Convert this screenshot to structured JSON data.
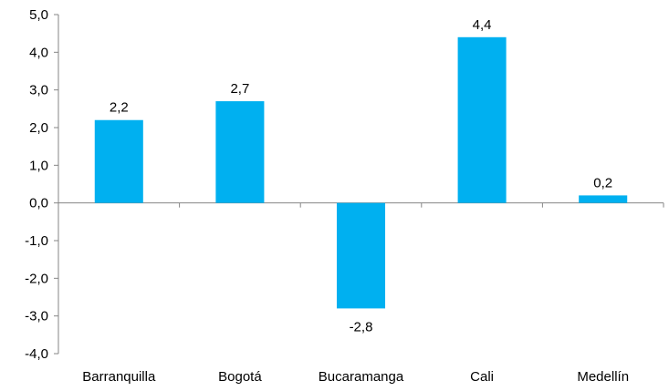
{
  "chart_data": {
    "type": "bar",
    "categories": [
      "Barranquilla",
      "Bogotá",
      "Bucaramanga",
      "Cali",
      "Medellín"
    ],
    "values": [
      2.2,
      2.7,
      -2.8,
      4.4,
      0.2
    ],
    "value_labels": [
      "2,2",
      "2,7",
      "-2,8",
      "4,4",
      "0,2"
    ],
    "ylim": [
      -4.0,
      5.0
    ],
    "y_ticks": [
      5.0,
      4.0,
      3.0,
      2.0,
      1.0,
      0.0,
      -1.0,
      -2.0,
      -3.0,
      -4.0
    ],
    "y_tick_labels": [
      "5,0",
      "4,0",
      "3,0",
      "2,0",
      "1,0",
      "0,0",
      "-1,0",
      "-2,0",
      "-3,0",
      "-4,0"
    ],
    "title": "",
    "xlabel": "",
    "ylabel": "",
    "grid": false,
    "legend": "none",
    "bar_color": "#00B0F0",
    "axis_color": "#868686"
  }
}
